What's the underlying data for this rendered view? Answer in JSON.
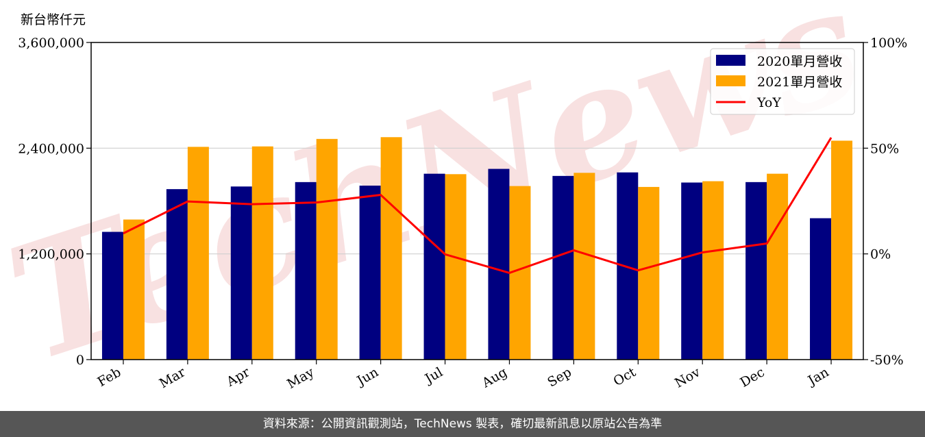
{
  "unit_label": "新台幣仟元",
  "footer_text": "資料來源：公開資訊觀測站，TechNews 製表，確切最新訊息以原站公告為準",
  "watermark_text": "TechNews",
  "colors": {
    "series_2020": "#000080",
    "series_2021": "#ffa500",
    "yoy": "#ff0000",
    "watermark": "#f3c9c9"
  },
  "chart_data": {
    "type": "bar",
    "categories": [
      "Feb",
      "Mar",
      "Apr",
      "May",
      "Jun",
      "Jul",
      "Aug",
      "Sep",
      "Oct",
      "Nov",
      "Dec",
      "Jan"
    ],
    "series": [
      {
        "name": "2020單月營收",
        "values": [
          1450000,
          1935000,
          1965000,
          2015000,
          1975000,
          2110000,
          2165000,
          2085000,
          2125000,
          2010000,
          2015000,
          1605000
        ]
      },
      {
        "name": "2021單月營收",
        "values": [
          1590000,
          2415000,
          2420000,
          2505000,
          2525000,
          2105000,
          1970000,
          2120000,
          1960000,
          2025000,
          2110000,
          2485000
        ]
      }
    ],
    "yoy": {
      "name": "YoY",
      "values": [
        9.7,
        24.8,
        23.5,
        24.3,
        27.9,
        -0.2,
        -9.0,
        1.7,
        -7.8,
        0.7,
        4.9,
        55.0
      ]
    },
    "ylim": [
      0,
      3600000
    ],
    "yticks": [
      "0",
      "1,200,000",
      "2,400,000",
      "3,600,000"
    ],
    "ytick_values": [
      0,
      1200000,
      2400000,
      3600000
    ],
    "y2lim": [
      -50,
      100
    ],
    "y2ticks": [
      "-50%",
      "0%",
      "50%",
      "100%"
    ],
    "y2tick_values": [
      -50,
      0,
      50,
      100
    ],
    "grid": true,
    "legend_position": "top-right"
  }
}
